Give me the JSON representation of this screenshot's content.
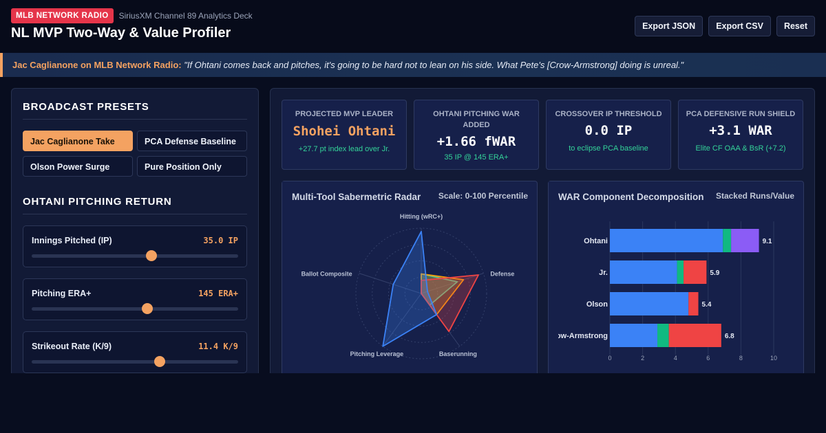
{
  "header": {
    "badge": "MLB NETWORK RADIO",
    "subtitle": "SiriusXM Channel 89 Analytics Deck",
    "title": "NL MVP Two-Way & Value Profiler",
    "actions": {
      "export_json": "Export JSON",
      "export_csv": "Export CSV",
      "reset": "Reset"
    }
  },
  "quote": {
    "speaker": "Jac Caglianone on MLB Network Radio:",
    "text": "\"If Ohtani comes back and pitches, it's going to be hard not to lean on his side. What Pete's [Crow-Armstrong] doing is unreal.\""
  },
  "left": {
    "presets_heading": "BROADCAST PRESETS",
    "presets": [
      {
        "label": "Jac Caglianone Take",
        "active": true
      },
      {
        "label": "PCA Defense Baseline",
        "active": false
      },
      {
        "label": "Olson Power Surge",
        "active": false
      },
      {
        "label": "Pure Position Only",
        "active": false
      }
    ],
    "pitching_heading": "OHTANI PITCHING RETURN",
    "sliders": [
      {
        "label": "Innings Pitched (IP)",
        "value": "35.0 IP",
        "fraction": 0.58
      },
      {
        "label": "Pitching ERA+",
        "value": "145 ERA+",
        "fraction": 0.56
      },
      {
        "label": "Strikeout Rate (K/9)",
        "value": "11.4 K/9",
        "fraction": 0.62
      }
    ]
  },
  "kpis": [
    {
      "label": "PROJECTED MVP LEADER",
      "value": "Shohei Ohtani",
      "sub": "+27.7 pt index lead over Jr."
    },
    {
      "label": "OHTANI PITCHING WAR ADDED",
      "value": "+1.66 fWAR",
      "sub": "35 IP @ 145 ERA+"
    },
    {
      "label": "CROSSOVER IP THRESHOLD",
      "value": "0.0 IP",
      "sub": "to eclipse PCA baseline"
    },
    {
      "label": "PCA DEFENSIVE RUN SHIELD",
      "value": "+3.1 WAR",
      "sub": "Elite CF OAA & BsR (+7.2)"
    }
  ],
  "radar": {
    "title": "Multi-Tool Sabermetric Radar",
    "scale_label": "Scale: 0-100 Percentile"
  },
  "bars": {
    "title": "WAR Component Decomposition",
    "scale_label": "Stacked Runs/Value"
  },
  "colors": {
    "accent": "#f4a261",
    "badge": "#e5354a",
    "positive": "#34d399",
    "ohtani": "#3b82f6",
    "pca": "#ef4444",
    "olson": "#f59e0b",
    "jr": "#2dd4bf",
    "pitching": "#8b5cf6"
  },
  "chart_data": [
    {
      "type": "radar",
      "title": "Multi-Tool Sabermetric Radar",
      "scale": "Scale: 0-100 Percentile",
      "axes": [
        "Hitting (wRC+)",
        "Defense",
        "Baserunning",
        "Pitching Leverage",
        "Ballot Composite"
      ],
      "range": [
        0,
        100
      ],
      "series": [
        {
          "color": "#3b82f6",
          "values": [
            95,
            10,
            40,
            100,
            45
          ]
        },
        {
          "color": "#ef4444",
          "values": [
            20,
            92,
            72,
            0,
            0
          ]
        },
        {
          "color": "#f59e0b",
          "values": [
            30,
            68,
            40,
            0,
            0
          ]
        },
        {
          "color": "#2dd4bf",
          "values": [
            30,
            58,
            22,
            0,
            0
          ]
        }
      ]
    },
    {
      "type": "bar",
      "stacked": true,
      "orientation": "horizontal",
      "title": "WAR Component Decomposition",
      "scale": "Stacked Runs/Value",
      "categories": [
        "Ohtani",
        "Jr.",
        "Olson",
        "Crow-Armstrong"
      ],
      "xlim": [
        0,
        10
      ],
      "xticks": [
        0,
        2,
        4,
        6,
        8,
        10
      ],
      "series": [
        {
          "color": "#3b82f6",
          "values": [
            6.9,
            4.1,
            4.8,
            2.9
          ]
        },
        {
          "color": "#10b981",
          "values": [
            0.5,
            0.4,
            0,
            0.7
          ]
        },
        {
          "color": "#ef4444",
          "values": [
            0,
            1.4,
            0.6,
            3.2
          ]
        },
        {
          "color": "#8b5cf6",
          "values": [
            1.7,
            0,
            0,
            0
          ]
        }
      ],
      "totals": [
        "9.1",
        "5.9",
        "5.4",
        "6.8"
      ]
    }
  ]
}
